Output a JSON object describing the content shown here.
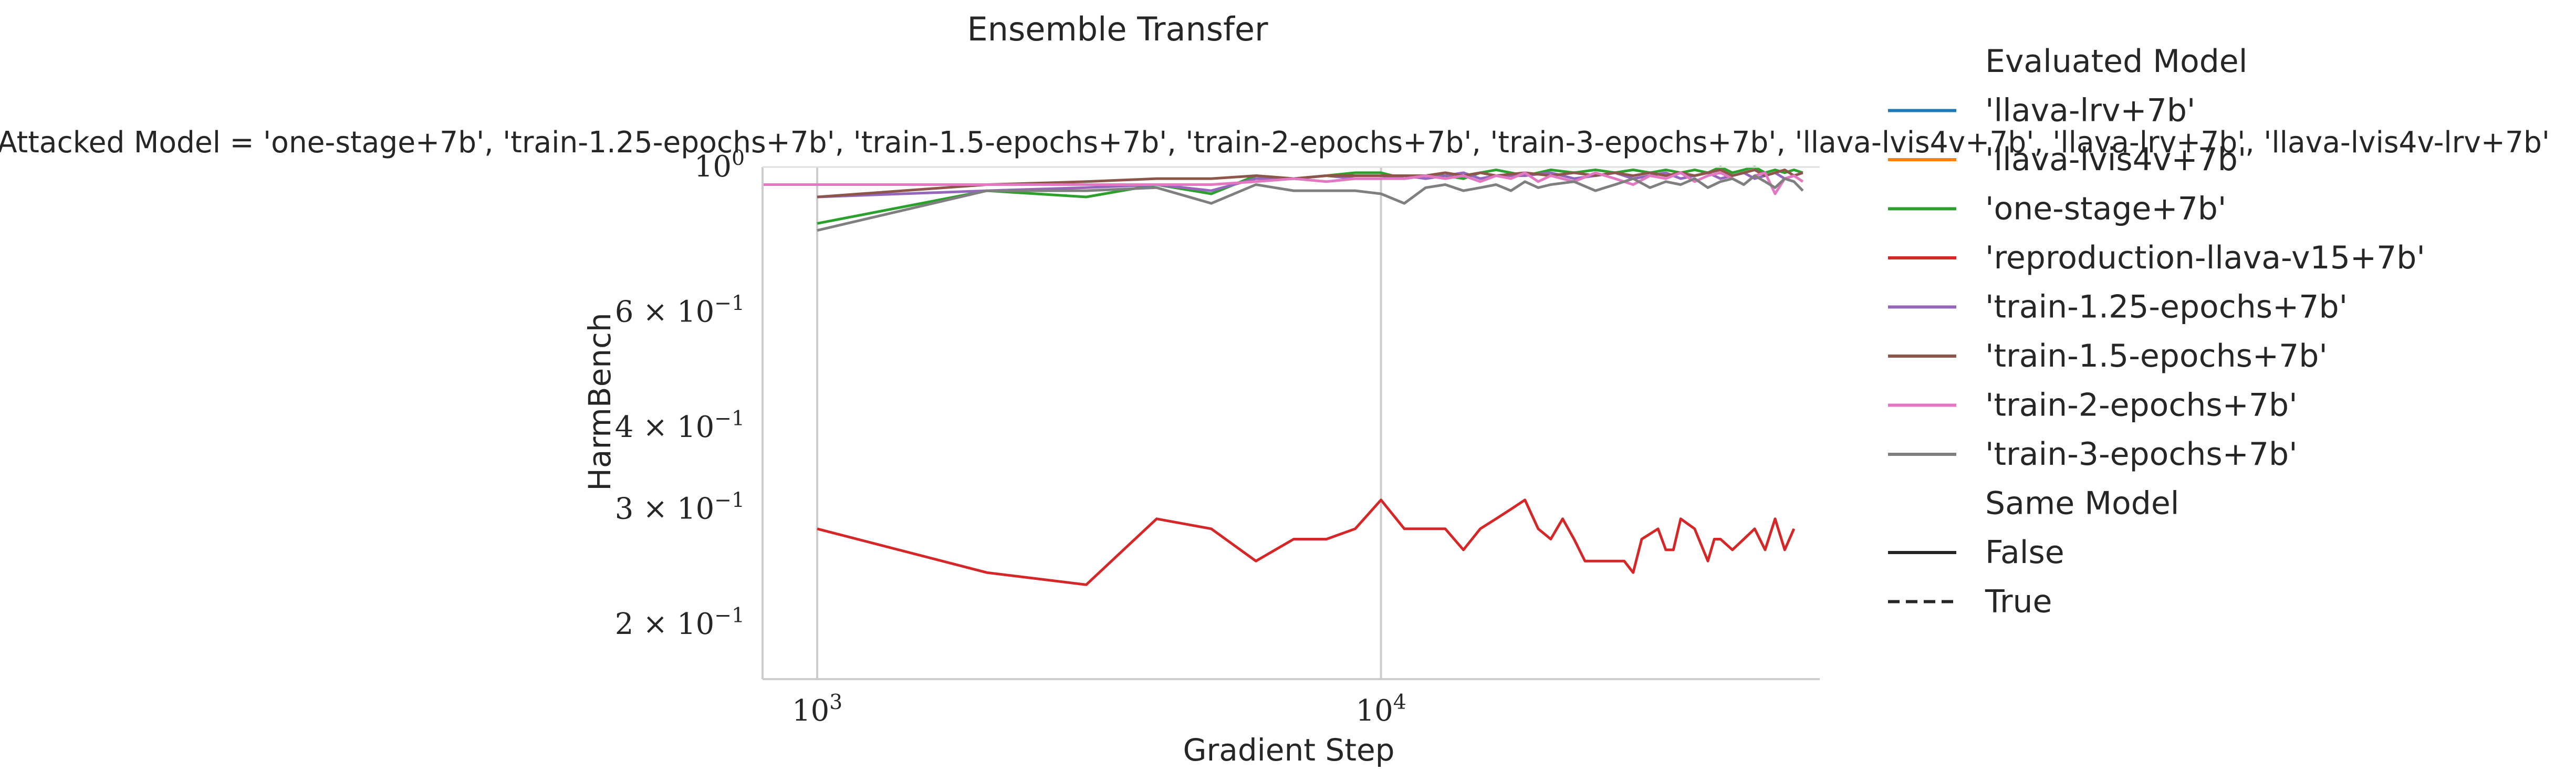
{
  "chart_data": {
    "type": "line",
    "title": "Ensemble Transfer",
    "subtitle": "Attacked Model = 'one-stage+7b', 'train-1.25-epochs+7b', 'train-1.5-epochs+7b', 'train-2-epochs+7b', 'train-3-epochs+7b', 'llava-lvis4v+7b', 'llava-lrv+7b', 'llava-lvis4v-lrv+7b'",
    "xlabel": "Gradient Step",
    "ylabel": "HarmBench",
    "x_scale": "log",
    "y_scale": "log",
    "xlim": [
      800,
      60000
    ],
    "ylim": [
      0.165,
      1.0
    ],
    "grid": "vertical",
    "x_ticks": [
      {
        "value": 1000,
        "base": "10",
        "exp": "3"
      },
      {
        "value": 10000,
        "base": "10",
        "exp": "4"
      }
    ],
    "y_ticks": [
      {
        "value": 1.0,
        "mant": "",
        "base": "10",
        "exp": "0"
      },
      {
        "value": 0.6,
        "mant": "6 × ",
        "base": "10",
        "exp": "−1"
      },
      {
        "value": 0.4,
        "mant": "4 × ",
        "base": "10",
        "exp": "−1"
      },
      {
        "value": 0.3,
        "mant": "3 × ",
        "base": "10",
        "exp": "−1"
      },
      {
        "value": 0.2,
        "mant": "2 × ",
        "base": "10",
        "exp": "−1"
      }
    ],
    "legend": {
      "position": "right",
      "title": "Evaluated Model",
      "style_title": "Same Model",
      "styles": [
        {
          "name": "False",
          "dash": "solid"
        },
        {
          "name": "True",
          "dash": "dashed"
        }
      ]
    },
    "series": [
      {
        "name": "'llava-lrv+7b'",
        "color": "#1f77b4",
        "points": []
      },
      {
        "name": "'llava-lvis4v+7b'",
        "color": "#ff7f0e",
        "points": []
      },
      {
        "name": "'one-stage+7b'",
        "color": "#2ca02c",
        "points": [
          [
            1000,
            0.82
          ],
          [
            2000,
            0.92
          ],
          [
            3000,
            0.9
          ],
          [
            4000,
            0.94
          ],
          [
            5000,
            0.91
          ],
          [
            6000,
            0.97
          ],
          [
            7000,
            0.96
          ],
          [
            8000,
            0.97
          ],
          [
            9000,
            0.98
          ],
          [
            10000,
            0.98
          ],
          [
            11000,
            0.96
          ],
          [
            12000,
            0.97
          ],
          [
            13000,
            0.97
          ],
          [
            14000,
            0.96
          ],
          [
            15000,
            0.98
          ],
          [
            16000,
            0.99
          ],
          [
            17000,
            0.98
          ],
          [
            18000,
            0.97
          ],
          [
            19000,
            0.98
          ],
          [
            20000,
            0.99
          ],
          [
            22000,
            0.98
          ],
          [
            24000,
            0.99
          ],
          [
            26000,
            0.98
          ],
          [
            28000,
            0.99
          ],
          [
            30000,
            0.98
          ],
          [
            32000,
            0.99
          ],
          [
            34000,
            0.98
          ],
          [
            36000,
            0.99
          ],
          [
            38000,
            0.98
          ],
          [
            40000,
            1.0
          ],
          [
            42000,
            0.98
          ],
          [
            44000,
            0.99
          ],
          [
            46000,
            1.0
          ],
          [
            48000,
            0.98
          ],
          [
            50000,
            0.99
          ],
          [
            52000,
            0.98
          ],
          [
            54000,
            0.99
          ],
          [
            56000,
            0.98
          ]
        ]
      },
      {
        "name": "'reproduction-llava-v15+7b'",
        "color": "#d62728",
        "points": [
          [
            1000,
            0.28
          ],
          [
            2000,
            0.24
          ],
          [
            3000,
            0.23
          ],
          [
            4000,
            0.29
          ],
          [
            5000,
            0.28
          ],
          [
            6000,
            0.25
          ],
          [
            7000,
            0.27
          ],
          [
            8000,
            0.27
          ],
          [
            9000,
            0.28
          ],
          [
            10000,
            0.31
          ],
          [
            11000,
            0.28
          ],
          [
            12000,
            0.28
          ],
          [
            13000,
            0.28
          ],
          [
            14000,
            0.26
          ],
          [
            15000,
            0.28
          ],
          [
            16000,
            0.29
          ],
          [
            17000,
            0.3
          ],
          [
            18000,
            0.31
          ],
          [
            19000,
            0.28
          ],
          [
            20000,
            0.27
          ],
          [
            21000,
            0.29
          ],
          [
            22000,
            0.27
          ],
          [
            23000,
            0.25
          ],
          [
            25000,
            0.25
          ],
          [
            27000,
            0.25
          ],
          [
            28000,
            0.24
          ],
          [
            29000,
            0.27
          ],
          [
            31000,
            0.28
          ],
          [
            32000,
            0.26
          ],
          [
            33000,
            0.26
          ],
          [
            34000,
            0.29
          ],
          [
            36000,
            0.28
          ],
          [
            38000,
            0.25
          ],
          [
            39000,
            0.27
          ],
          [
            40000,
            0.27
          ],
          [
            42000,
            0.26
          ],
          [
            44000,
            0.27
          ],
          [
            46000,
            0.28
          ],
          [
            48000,
            0.26
          ],
          [
            50000,
            0.29
          ],
          [
            52000,
            0.26
          ],
          [
            54000,
            0.28
          ]
        ]
      },
      {
        "name": "'train-1.25-epochs+7b'",
        "color": "#9467bd",
        "points": [
          [
            1000,
            0.9
          ],
          [
            2000,
            0.92
          ],
          [
            3000,
            0.93
          ],
          [
            4000,
            0.94
          ],
          [
            5000,
            0.92
          ],
          [
            6000,
            0.96
          ],
          [
            7000,
            0.96
          ],
          [
            8000,
            0.97
          ],
          [
            9000,
            0.96
          ],
          [
            10000,
            0.96
          ],
          [
            11000,
            0.97
          ],
          [
            12000,
            0.96
          ],
          [
            13000,
            0.97
          ],
          [
            14000,
            0.98
          ],
          [
            15000,
            0.96
          ],
          [
            16000,
            0.97
          ],
          [
            18000,
            0.97
          ],
          [
            20000,
            0.98
          ],
          [
            22000,
            0.96
          ],
          [
            24000,
            0.97
          ],
          [
            26000,
            0.98
          ],
          [
            28000,
            0.96
          ],
          [
            30000,
            0.97
          ],
          [
            32000,
            0.98
          ],
          [
            34000,
            0.96
          ],
          [
            36000,
            0.97
          ],
          [
            38000,
            0.98
          ],
          [
            40000,
            0.96
          ],
          [
            42000,
            0.97
          ],
          [
            44000,
            0.98
          ],
          [
            46000,
            0.96
          ],
          [
            48000,
            0.97
          ],
          [
            50000,
            0.98
          ],
          [
            52000,
            0.96
          ],
          [
            54000,
            0.97
          ],
          [
            56000,
            0.98
          ]
        ]
      },
      {
        "name": "'train-1.5-epochs+7b'",
        "color": "#8c564b",
        "points": [
          [
            1000,
            0.9
          ],
          [
            2000,
            0.94
          ],
          [
            3000,
            0.95
          ],
          [
            4000,
            0.96
          ],
          [
            5000,
            0.96
          ],
          [
            6000,
            0.97
          ],
          [
            7000,
            0.96
          ],
          [
            8000,
            0.97
          ],
          [
            9000,
            0.97
          ],
          [
            10000,
            0.97
          ],
          [
            11000,
            0.97
          ],
          [
            12000,
            0.97
          ],
          [
            13000,
            0.98
          ],
          [
            14000,
            0.97
          ],
          [
            15000,
            0.98
          ],
          [
            16000,
            0.97
          ],
          [
            18000,
            0.98
          ],
          [
            20000,
            0.97
          ],
          [
            22000,
            0.98
          ],
          [
            24000,
            0.97
          ],
          [
            26000,
            0.98
          ],
          [
            28000,
            0.97
          ],
          [
            30000,
            0.98
          ],
          [
            32000,
            0.97
          ],
          [
            34000,
            0.98
          ],
          [
            36000,
            0.97
          ],
          [
            38000,
            0.98
          ],
          [
            40000,
            0.99
          ],
          [
            42000,
            0.97
          ],
          [
            44000,
            0.98
          ],
          [
            46000,
            0.99
          ],
          [
            48000,
            0.97
          ],
          [
            50000,
            0.98
          ],
          [
            52000,
            0.99
          ],
          [
            54000,
            0.97
          ],
          [
            56000,
            0.98
          ]
        ]
      },
      {
        "name": "'train-2-epochs+7b'",
        "color": "#e377c2",
        "points": [
          [
            800,
            0.94
          ],
          [
            1000,
            0.94
          ],
          [
            2000,
            0.94
          ],
          [
            3000,
            0.94
          ],
          [
            4000,
            0.94
          ],
          [
            5000,
            0.94
          ],
          [
            6000,
            0.95
          ],
          [
            7000,
            0.96
          ],
          [
            8000,
            0.95
          ],
          [
            9000,
            0.96
          ],
          [
            10000,
            0.96
          ],
          [
            11000,
            0.96
          ],
          [
            12000,
            0.97
          ],
          [
            13000,
            0.96
          ],
          [
            14000,
            0.97
          ],
          [
            15000,
            0.95
          ],
          [
            16000,
            0.97
          ],
          [
            17000,
            0.96
          ],
          [
            18000,
            0.98
          ],
          [
            19000,
            0.95
          ],
          [
            20000,
            0.97
          ],
          [
            22000,
            0.95
          ],
          [
            24000,
            0.98
          ],
          [
            26000,
            0.96
          ],
          [
            28000,
            0.94
          ],
          [
            30000,
            0.97
          ],
          [
            32000,
            0.96
          ],
          [
            34000,
            0.98
          ],
          [
            36000,
            0.95
          ],
          [
            38000,
            0.97
          ],
          [
            40000,
            0.98
          ],
          [
            42000,
            0.96
          ],
          [
            44000,
            0.94
          ],
          [
            46000,
            0.97
          ],
          [
            48000,
            0.98
          ],
          [
            50000,
            0.91
          ],
          [
            52000,
            0.96
          ],
          [
            54000,
            0.97
          ],
          [
            56000,
            0.95
          ]
        ]
      },
      {
        "name": "'train-3-epochs+7b'",
        "color": "#7f7f7f",
        "points": [
          [
            1000,
            0.8
          ],
          [
            2000,
            0.92
          ],
          [
            3000,
            0.92
          ],
          [
            4000,
            0.93
          ],
          [
            5000,
            0.88
          ],
          [
            6000,
            0.94
          ],
          [
            7000,
            0.92
          ],
          [
            8000,
            0.92
          ],
          [
            9000,
            0.92
          ],
          [
            10000,
            0.91
          ],
          [
            11000,
            0.88
          ],
          [
            12000,
            0.93
          ],
          [
            13000,
            0.94
          ],
          [
            14000,
            0.92
          ],
          [
            15000,
            0.93
          ],
          [
            16000,
            0.94
          ],
          [
            17000,
            0.92
          ],
          [
            18000,
            0.95
          ],
          [
            19000,
            0.93
          ],
          [
            20000,
            0.94
          ],
          [
            22000,
            0.95
          ],
          [
            24000,
            0.92
          ],
          [
            26000,
            0.94
          ],
          [
            28000,
            0.96
          ],
          [
            30000,
            0.93
          ],
          [
            32000,
            0.95
          ],
          [
            34000,
            0.94
          ],
          [
            36000,
            0.96
          ],
          [
            38000,
            0.93
          ],
          [
            40000,
            0.95
          ],
          [
            42000,
            0.96
          ],
          [
            44000,
            0.94
          ],
          [
            46000,
            0.97
          ],
          [
            48000,
            0.95
          ],
          [
            50000,
            0.93
          ],
          [
            52000,
            0.96
          ],
          [
            54000,
            0.95
          ],
          [
            56000,
            0.92
          ]
        ]
      }
    ]
  }
}
